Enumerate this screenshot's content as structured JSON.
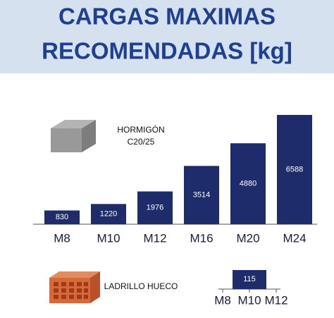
{
  "header": {
    "title": [
      "CARGAS MAXIMAS",
      "RECOMENDADAS [kg]"
    ]
  },
  "chart_data": [
    {
      "type": "bar",
      "annotation": [
        "HORMIGÓN",
        "C20/25"
      ],
      "categories": [
        "M8",
        "M10",
        "M12",
        "M16",
        "M20",
        "M24"
      ],
      "values": [
        830,
        1220,
        1976,
        3514,
        4880,
        6588
      ],
      "color": "#1f2c6b"
    },
    {
      "type": "span",
      "annotation": [
        "LADRILLO HUECO"
      ],
      "xticks": [
        "M8",
        "M10",
        "M12"
      ],
      "values": [
        115
      ],
      "color": "#1f2c6b"
    }
  ]
}
